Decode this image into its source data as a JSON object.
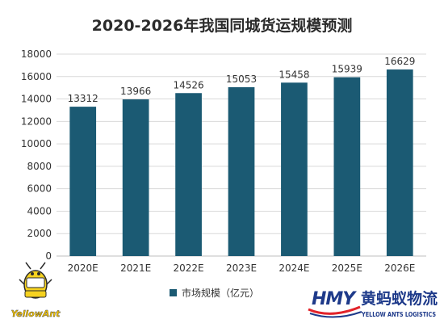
{
  "chart_data": {
    "type": "bar",
    "title": "2020-2026年我国同城货运规模预测",
    "categories": [
      "2020E",
      "2021E",
      "2022E",
      "2023E",
      "2024E",
      "2025E",
      "2026E"
    ],
    "series": [
      {
        "name": "市场规模（亿元）",
        "values": [
          13312,
          13966,
          14526,
          15053,
          15458,
          15939,
          16629
        ]
      }
    ],
    "ylim": [
      0,
      18000
    ],
    "yticks": [
      0,
      2000,
      4000,
      6000,
      8000,
      10000,
      12000,
      14000,
      16000,
      18000
    ],
    "grid": true,
    "legend_position": "bottom",
    "bar_color": "#1b5a73"
  },
  "logos": {
    "left_text": "YellowAnt",
    "right_mark": "HMY",
    "right_name": "黄蚂蚁物流",
    "right_sub": "YELLOW ANTS LOGISTICS"
  }
}
